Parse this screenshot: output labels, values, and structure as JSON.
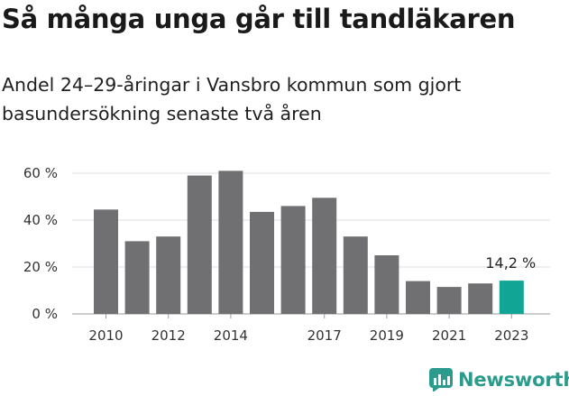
{
  "title": "Så många unga går till tandläkaren",
  "subtitle": "Andel 24–29-åringar i Vansbro kommun som gjort basundersökning senaste två åren",
  "brand": {
    "name": "Newsworthy",
    "icon": "newsworthy-chart-icon",
    "color": "#2a9b8c"
  },
  "chart_data": {
    "type": "bar",
    "categories": [
      "2010",
      "2011",
      "2012",
      "2013",
      "2014",
      "2015",
      "2016",
      "2017",
      "2018",
      "2019",
      "2020",
      "2021",
      "2022",
      "2023"
    ],
    "values": [
      44.5,
      31,
      33,
      59,
      61,
      43.5,
      46,
      49.5,
      33,
      25,
      14,
      11.5,
      13,
      14.2
    ],
    "xtick_labels": [
      "2010",
      "2012",
      "2014",
      "2017",
      "2019",
      "2021",
      "2023"
    ],
    "ytick_labels": [
      "0 %",
      "20 %",
      "40 %",
      "60 %"
    ],
    "yticks": [
      0,
      20,
      40,
      60
    ],
    "ylim": [
      0,
      63
    ],
    "annotation": {
      "category": "2023",
      "text": "14,2 %"
    },
    "colors": {
      "bar": "#707073",
      "highlight": "#11a596",
      "grid": "#dddddd"
    },
    "grid": true,
    "title": "",
    "xlabel": "",
    "ylabel": ""
  }
}
